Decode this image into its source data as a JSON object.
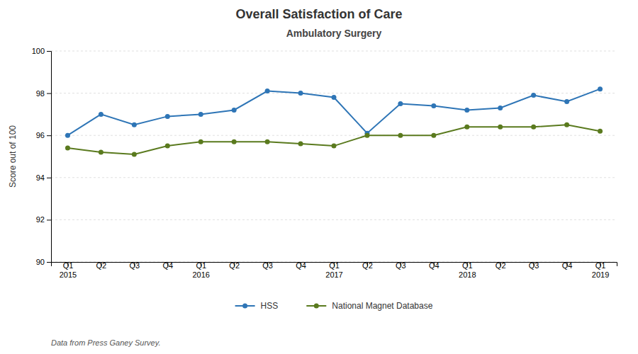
{
  "chart_data": {
    "type": "line",
    "title": "Overall Satisfaction of Care",
    "subtitle": "Ambulatory Surgery",
    "y_label": "Score out of 100",
    "annotations": [
      "Data from Press Ganey Survey."
    ],
    "categories": [
      "Q1\n2015",
      "Q2",
      "Q3",
      "Q4",
      "Q1\n2016",
      "Q2",
      "Q3",
      "Q4",
      "Q1\n2017",
      "Q2",
      "Q3",
      "Q4",
      "Q1\n2018",
      "Q2",
      "Q3",
      "Q4",
      "Q1\n2019"
    ],
    "series": [
      {
        "name": "HSS",
        "color": "#2e75b6",
        "marker": "circle",
        "values": [
          96.0,
          97.0,
          96.5,
          96.9,
          97.0,
          97.2,
          98.1,
          98.0,
          97.8,
          96.1,
          97.5,
          97.4,
          97.2,
          97.3,
          97.9,
          97.6,
          98.2
        ]
      },
      {
        "name": "National Magnet Database",
        "color": "#5a7a1e",
        "marker": "circle",
        "values": [
          95.4,
          95.2,
          95.1,
          95.5,
          95.7,
          95.7,
          95.7,
          95.6,
          95.5,
          96.0,
          96.0,
          96.0,
          96.4,
          96.4,
          96.4,
          96.5,
          96.2
        ]
      }
    ],
    "ylim": [
      90,
      100
    ],
    "yticks": [
      90,
      92,
      94,
      96,
      98,
      100
    ],
    "grid": true,
    "legend": "bottom"
  }
}
